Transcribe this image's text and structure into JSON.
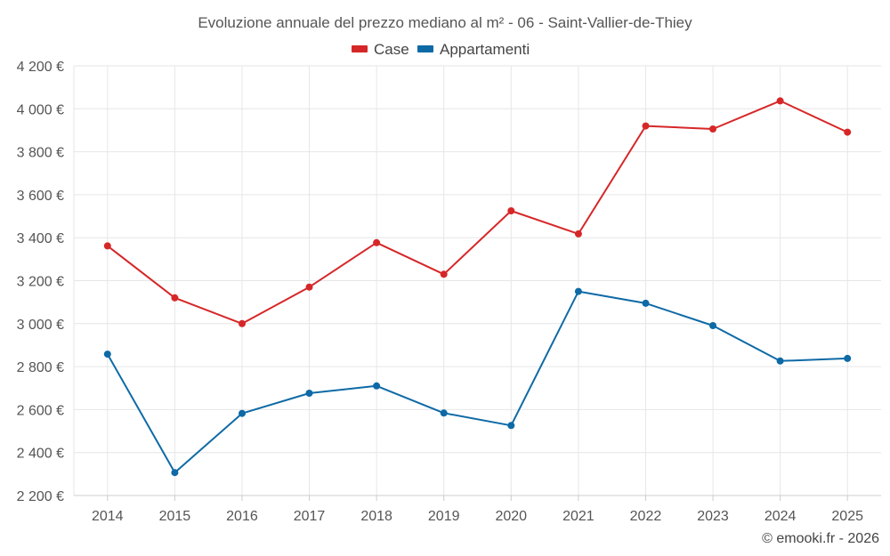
{
  "chart_data": {
    "type": "line",
    "title": "Evoluzione annuale del prezzo mediano al m² - 06 - Saint-Vallier-de-Thiey",
    "categories": [
      "2014",
      "2015",
      "2016",
      "2017",
      "2018",
      "2019",
      "2020",
      "2021",
      "2022",
      "2023",
      "2024",
      "2025"
    ],
    "series": [
      {
        "name": "Case",
        "color": "#d62728",
        "values": [
          3362,
          3120,
          3000,
          3170,
          3377,
          3230,
          3525,
          3418,
          3920,
          3906,
          4037,
          3891
        ]
      },
      {
        "name": "Appartamenti",
        "color": "#0e6aa6",
        "values": [
          2858,
          2307,
          2582,
          2676,
          2710,
          2584,
          2526,
          3150,
          3095,
          2991,
          2826,
          2838
        ]
      }
    ],
    "ylim": [
      2200,
      4200
    ],
    "yticks": [
      2200,
      2400,
      2600,
      2800,
      3000,
      3200,
      3400,
      3600,
      3800,
      4000,
      4200
    ],
    "ytick_labels": [
      "2 200 €",
      "2 400 €",
      "2 600 €",
      "2 800 €",
      "3 000 €",
      "3 200 €",
      "3 400 €",
      "3 600 €",
      "3 800 €",
      "4 000 €",
      "4 200 €"
    ],
    "xlabel": "",
    "ylabel": "",
    "grid": true,
    "legend": "top-center"
  },
  "credit": "© emooki.fr - 2026"
}
